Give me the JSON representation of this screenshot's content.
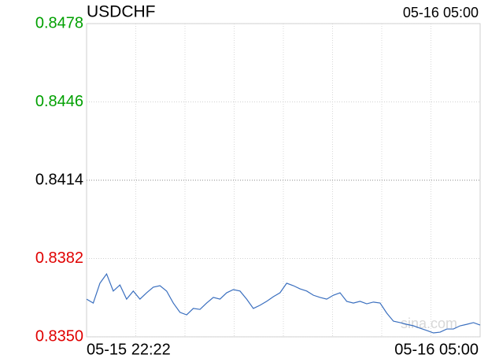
{
  "chart_data": {
    "type": "line",
    "title": "USDCHF",
    "timestamp": "05-16 05:00",
    "watermark": "sina.com",
    "x_start": "05-15 22:22",
    "x_end": "05-16 05:00",
    "ylim": [
      0.835,
      0.8478
    ],
    "yticks": [
      {
        "value": 0.835,
        "label": "0.8350"
      },
      0.8382,
      0.8414,
      0.8446,
      0.8478
    ],
    "ytick_colors": [
      "#e00000",
      "#e00000",
      "#000000",
      "#00a000",
      "#00a000"
    ],
    "grid": true,
    "series": [
      {
        "color": "#3a6fbf",
        "values": [
          0.83654,
          0.83638,
          0.83719,
          0.83757,
          0.83687,
          0.83712,
          0.83654,
          0.83687,
          0.83654,
          0.8368,
          0.83703,
          0.83709,
          0.83687,
          0.83638,
          0.836,
          0.8359,
          0.83616,
          0.83612,
          0.83638,
          0.83661,
          0.83654,
          0.8368,
          0.83693,
          0.83687,
          0.83654,
          0.83616,
          0.83629,
          0.83645,
          0.83664,
          0.8368,
          0.83719,
          0.83709,
          0.83696,
          0.83687,
          0.8367,
          0.83661,
          0.83654,
          0.8367,
          0.8368,
          0.83645,
          0.83638,
          0.83645,
          0.83635,
          0.83642,
          0.83638,
          0.83597,
          0.83564,
          0.83558,
          0.83551,
          0.83545,
          0.83535,
          0.83526,
          0.83516,
          0.83519,
          0.83532,
          0.83532,
          0.83545,
          0.83551,
          0.83558,
          0.83548
        ]
      }
    ]
  }
}
